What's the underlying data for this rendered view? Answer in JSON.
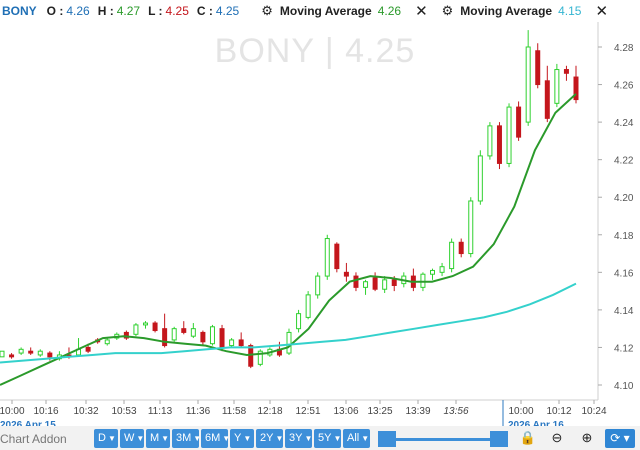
{
  "header": {
    "symbol": "BONY",
    "o_label": "O :",
    "o_value": "4.26",
    "h_label": "H :",
    "h_value": "4.27",
    "l_label": "L :",
    "l_value": "4.25",
    "c_label": "C :",
    "c_value": "4.25",
    "ma1_label": "Moving Average",
    "ma1_value": "4.26",
    "ma2_label": "Moving Average",
    "ma2_value": "4.15"
  },
  "watermark": "BONY  |  4.25",
  "colors": {
    "up": "#2fd12f",
    "down": "#c4161c",
    "ma1": "#2b9a2b",
    "ma2": "#34d1cc",
    "accent": "#3d8fd9"
  },
  "chart_data": {
    "type": "candlestick",
    "y_ticks": [
      "4.10",
      "4.12",
      "4.14",
      "4.16",
      "4.18",
      "4.20",
      "4.22",
      "4.24",
      "4.26",
      "4.28"
    ],
    "ylim": [
      4.1,
      4.29
    ],
    "x_ticks": [
      "10:00",
      "10:16",
      "10:32",
      "10:53",
      "11:13",
      "11:36",
      "11:58",
      "12:18",
      "12:51",
      "13:06",
      "13:25",
      "13:39",
      "13:56",
      "10:00",
      "10:12",
      "10:24"
    ],
    "date_labels": [
      "2026 Apr 15",
      "2026 Apr 16"
    ],
    "series": [
      {
        "name": "Moving Average",
        "value": "4.26",
        "values": [
          4.1,
          4.105,
          4.11,
          4.115,
          4.12,
          4.125,
          4.126,
          4.125,
          4.123,
          4.122,
          4.121,
          4.118,
          4.116,
          4.117,
          4.12,
          4.13,
          4.145,
          4.155,
          4.158,
          4.157,
          4.155,
          4.155,
          4.158,
          4.163,
          4.175,
          4.195,
          4.225,
          4.245,
          4.255
        ]
      },
      {
        "name": "Moving Average",
        "value": "4.15",
        "values": [
          4.112,
          4.113,
          4.114,
          4.115,
          4.116,
          4.117,
          4.117,
          4.117,
          4.118,
          4.119,
          4.12,
          4.12,
          4.121,
          4.122,
          4.123,
          4.124,
          4.126,
          4.128,
          4.13,
          4.132,
          4.134,
          4.136,
          4.139,
          4.143,
          4.148,
          4.154
        ]
      }
    ],
    "candles": [
      {
        "o": 4.115,
        "h": 4.118,
        "l": 4.115,
        "c": 4.118
      },
      {
        "o": 4.116,
        "h": 4.117,
        "l": 4.114,
        "c": 4.115
      },
      {
        "o": 4.117,
        "h": 4.12,
        "l": 4.116,
        "c": 4.119
      },
      {
        "o": 4.118,
        "h": 4.12,
        "l": 4.116,
        "c": 4.117
      },
      {
        "o": 4.116,
        "h": 4.119,
        "l": 4.115,
        "c": 4.118
      },
      {
        "o": 4.117,
        "h": 4.118,
        "l": 4.113,
        "c": 4.115
      },
      {
        "o": 4.114,
        "h": 4.118,
        "l": 4.113,
        "c": 4.116
      },
      {
        "o": 4.116,
        "h": 4.12,
        "l": 4.114,
        "c": 4.115
      },
      {
        "o": 4.116,
        "h": 4.125,
        "l": 4.115,
        "c": 4.119
      },
      {
        "o": 4.12,
        "h": 4.122,
        "l": 4.117,
        "c": 4.118
      },
      {
        "o": 4.124,
        "h": 4.125,
        "l": 4.122,
        "c": 4.123
      },
      {
        "o": 4.122,
        "h": 4.125,
        "l": 4.121,
        "c": 4.124
      },
      {
        "o": 4.125,
        "h": 4.128,
        "l": 4.124,
        "c": 4.127
      },
      {
        "o": 4.128,
        "h": 4.129,
        "l": 4.124,
        "c": 4.125
      },
      {
        "o": 4.127,
        "h": 4.133,
        "l": 4.126,
        "c": 4.132
      },
      {
        "o": 4.132,
        "h": 4.134,
        "l": 4.13,
        "c": 4.133
      },
      {
        "o": 4.133,
        "h": 4.134,
        "l": 4.128,
        "c": 4.129
      },
      {
        "o": 4.13,
        "h": 4.138,
        "l": 4.12,
        "c": 4.121
      },
      {
        "o": 4.124,
        "h": 4.131,
        "l": 4.123,
        "c": 4.13
      },
      {
        "o": 4.13,
        "h": 4.134,
        "l": 4.127,
        "c": 4.128
      },
      {
        "o": 4.126,
        "h": 4.133,
        "l": 4.125,
        "c": 4.13
      },
      {
        "o": 4.128,
        "h": 4.129,
        "l": 4.121,
        "c": 4.123
      },
      {
        "o": 4.122,
        "h": 4.132,
        "l": 4.121,
        "c": 4.131
      },
      {
        "o": 4.13,
        "h": 4.132,
        "l": 4.118,
        "c": 4.12
      },
      {
        "o": 4.121,
        "h": 4.125,
        "l": 4.12,
        "c": 4.124
      },
      {
        "o": 4.124,
        "h": 4.128,
        "l": 4.12,
        "c": 4.121
      },
      {
        "o": 4.121,
        "h": 4.122,
        "l": 4.109,
        "c": 4.11
      },
      {
        "o": 4.111,
        "h": 4.119,
        "l": 4.11,
        "c": 4.118
      },
      {
        "o": 4.116,
        "h": 4.12,
        "l": 4.115,
        "c": 4.119
      },
      {
        "o": 4.119,
        "h": 4.123,
        "l": 4.115,
        "c": 4.116
      },
      {
        "o": 4.117,
        "h": 4.13,
        "l": 4.116,
        "c": 4.128
      },
      {
        "o": 4.13,
        "h": 4.14,
        "l": 4.128,
        "c": 4.138
      },
      {
        "o": 4.136,
        "h": 4.15,
        "l": 4.135,
        "c": 4.148
      },
      {
        "o": 4.148,
        "h": 4.16,
        "l": 4.146,
        "c": 4.158
      },
      {
        "o": 4.158,
        "h": 4.18,
        "l": 4.156,
        "c": 4.178
      },
      {
        "o": 4.175,
        "h": 4.176,
        "l": 4.16,
        "c": 4.162
      },
      {
        "o": 4.16,
        "h": 4.165,
        "l": 4.155,
        "c": 4.158
      },
      {
        "o": 4.158,
        "h": 4.16,
        "l": 4.15,
        "c": 4.152
      },
      {
        "o": 4.152,
        "h": 4.156,
        "l": 4.148,
        "c": 4.155
      },
      {
        "o": 4.157,
        "h": 4.16,
        "l": 4.15,
        "c": 4.151
      },
      {
        "o": 4.151,
        "h": 4.158,
        "l": 4.149,
        "c": 4.156
      },
      {
        "o": 4.156,
        "h": 4.158,
        "l": 4.15,
        "c": 4.153
      },
      {
        "o": 4.154,
        "h": 4.16,
        "l": 4.152,
        "c": 4.158
      },
      {
        "o": 4.158,
        "h": 4.162,
        "l": 4.15,
        "c": 4.152
      },
      {
        "o": 4.152,
        "h": 4.16,
        "l": 4.15,
        "c": 4.159
      },
      {
        "o": 4.159,
        "h": 4.162,
        "l": 4.156,
        "c": 4.161
      },
      {
        "o": 4.16,
        "h": 4.165,
        "l": 4.158,
        "c": 4.163
      },
      {
        "o": 4.162,
        "h": 4.178,
        "l": 4.16,
        "c": 4.176
      },
      {
        "o": 4.176,
        "h": 4.178,
        "l": 4.168,
        "c": 4.17
      },
      {
        "o": 4.17,
        "h": 4.2,
        "l": 4.168,
        "c": 4.198
      },
      {
        "o": 4.198,
        "h": 4.225,
        "l": 4.196,
        "c": 4.222
      },
      {
        "o": 4.222,
        "h": 4.24,
        "l": 4.22,
        "c": 4.238
      },
      {
        "o": 4.238,
        "h": 4.24,
        "l": 4.215,
        "c": 4.218
      },
      {
        "o": 4.218,
        "h": 4.25,
        "l": 4.216,
        "c": 4.248
      },
      {
        "o": 4.248,
        "h": 4.251,
        "l": 4.23,
        "c": 4.232
      },
      {
        "o": 4.24,
        "h": 4.289,
        "l": 4.238,
        "c": 4.28
      },
      {
        "o": 4.278,
        "h": 4.282,
        "l": 4.258,
        "c": 4.26
      },
      {
        "o": 4.262,
        "h": 4.27,
        "l": 4.24,
        "c": 4.242
      },
      {
        "o": 4.25,
        "h": 4.271,
        "l": 4.248,
        "c": 4.268
      },
      {
        "o": 4.268,
        "h": 4.27,
        "l": 4.262,
        "c": 4.266
      },
      {
        "o": 4.264,
        "h": 4.27,
        "l": 4.25,
        "c": 4.252
      }
    ]
  },
  "bottom": {
    "addon": "Chart Addon",
    "ranges": [
      "D",
      "W",
      "M",
      "3M",
      "6M",
      "Y",
      "2Y",
      "3Y",
      "5Y",
      "All"
    ]
  }
}
